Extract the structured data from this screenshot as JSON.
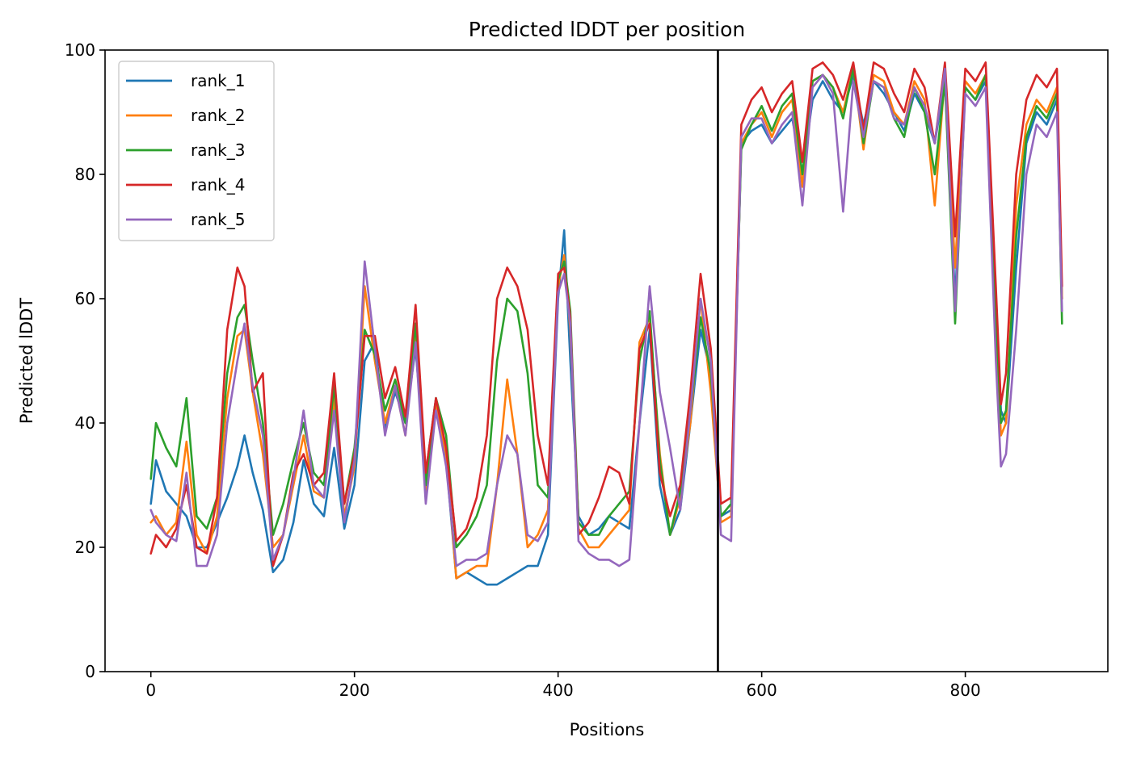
{
  "chart_data": {
    "type": "line",
    "title": "Predicted lDDT per position",
    "xlabel": "Positions",
    "ylabel": "Predicted lDDT",
    "xlim": [
      -45,
      940
    ],
    "ylim": [
      0,
      100
    ],
    "xticks": [
      0,
      200,
      400,
      600,
      800
    ],
    "yticks": [
      0,
      20,
      40,
      60,
      80,
      100
    ],
    "grid": false,
    "legend_position": "top-left",
    "vline": {
      "x": 557,
      "color": "#000000"
    },
    "series": [
      {
        "name": "rank_1",
        "color": "#1f77b4",
        "x": [
          0,
          5,
          15,
          25,
          35,
          45,
          55,
          65,
          75,
          85,
          92,
          100,
          110,
          120,
          130,
          140,
          150,
          160,
          170,
          180,
          190,
          200,
          210,
          220,
          230,
          240,
          250,
          260,
          270,
          280,
          290,
          300,
          310,
          320,
          330,
          340,
          350,
          360,
          370,
          380,
          390,
          400,
          406,
          412,
          420,
          430,
          440,
          450,
          460,
          470,
          480,
          490,
          500,
          510,
          520,
          530,
          540,
          550,
          560,
          570,
          580,
          590,
          600,
          610,
          620,
          630,
          640,
          650,
          660,
          670,
          680,
          690,
          700,
          710,
          720,
          730,
          740,
          750,
          760,
          770,
          780,
          790,
          800,
          810,
          820,
          830,
          835,
          840,
          850,
          860,
          870,
          880,
          890,
          895
        ],
        "values": [
          27,
          34,
          29,
          27,
          25,
          20,
          20,
          24,
          28,
          33,
          38,
          32,
          26,
          16,
          18,
          24,
          34,
          27,
          25,
          36,
          23,
          30,
          50,
          53,
          39,
          45,
          40,
          52,
          32,
          44,
          34,
          15,
          16,
          15,
          14,
          14,
          15,
          16,
          17,
          17,
          22,
          60,
          71,
          50,
          25,
          22,
          23,
          25,
          24,
          23,
          40,
          55,
          30,
          22,
          26,
          40,
          55,
          48,
          25,
          26,
          85,
          87,
          88,
          85,
          87,
          89,
          80,
          92,
          95,
          92,
          90,
          96,
          88,
          95,
          93,
          90,
          87,
          93,
          90,
          85,
          95,
          60,
          94,
          92,
          95,
          60,
          42,
          40,
          65,
          85,
          90,
          88,
          92,
          60
        ]
      },
      {
        "name": "rank_2",
        "color": "#ff7f0e",
        "x": [
          0,
          5,
          15,
          25,
          35,
          45,
          55,
          65,
          75,
          85,
          92,
          100,
          110,
          120,
          130,
          140,
          150,
          160,
          170,
          180,
          190,
          200,
          210,
          220,
          230,
          240,
          250,
          260,
          270,
          280,
          290,
          300,
          310,
          320,
          330,
          340,
          350,
          360,
          370,
          380,
          390,
          400,
          406,
          412,
          420,
          430,
          440,
          450,
          460,
          470,
          480,
          490,
          500,
          510,
          520,
          530,
          540,
          550,
          560,
          570,
          580,
          590,
          600,
          610,
          620,
          630,
          640,
          650,
          660,
          670,
          680,
          690,
          700,
          710,
          720,
          730,
          740,
          750,
          760,
          770,
          780,
          790,
          800,
          810,
          820,
          830,
          835,
          840,
          850,
          860,
          870,
          880,
          890,
          895
        ],
        "values": [
          24,
          25,
          22,
          24,
          37,
          22,
          19,
          25,
          44,
          54,
          55,
          45,
          35,
          20,
          22,
          30,
          38,
          29,
          28,
          44,
          25,
          33,
          62,
          50,
          40,
          46,
          38,
          55,
          28,
          43,
          35,
          15,
          16,
          17,
          17,
          30,
          47,
          35,
          20,
          22,
          26,
          62,
          67,
          55,
          23,
          20,
          20,
          22,
          24,
          26,
          53,
          57,
          35,
          22,
          28,
          40,
          60,
          45,
          24,
          25,
          85,
          88,
          90,
          86,
          90,
          92,
          78,
          95,
          96,
          94,
          90,
          97,
          84,
          96,
          95,
          90,
          88,
          95,
          92,
          75,
          96,
          65,
          95,
          93,
          96,
          55,
          38,
          40,
          75,
          88,
          92,
          90,
          94,
          60
        ]
      },
      {
        "name": "rank_3",
        "color": "#2ca02c",
        "x": [
          0,
          5,
          15,
          25,
          35,
          45,
          55,
          65,
          75,
          85,
          92,
          100,
          110,
          120,
          130,
          140,
          150,
          160,
          170,
          180,
          190,
          200,
          210,
          220,
          230,
          240,
          250,
          260,
          270,
          280,
          290,
          300,
          310,
          320,
          330,
          340,
          350,
          360,
          370,
          380,
          390,
          400,
          406,
          412,
          420,
          430,
          440,
          450,
          460,
          470,
          480,
          490,
          500,
          510,
          520,
          530,
          540,
          550,
          560,
          570,
          580,
          590,
          600,
          610,
          620,
          630,
          640,
          650,
          660,
          670,
          680,
          690,
          700,
          710,
          720,
          730,
          740,
          750,
          760,
          770,
          780,
          790,
          800,
          810,
          820,
          830,
          835,
          840,
          850,
          860,
          870,
          880,
          890,
          895
        ],
        "values": [
          31,
          40,
          36,
          33,
          44,
          25,
          23,
          28,
          48,
          57,
          59,
          50,
          40,
          22,
          27,
          34,
          40,
          32,
          30,
          46,
          27,
          36,
          55,
          51,
          42,
          47,
          40,
          56,
          30,
          44,
          38,
          20,
          22,
          25,
          30,
          50,
          60,
          58,
          48,
          30,
          28,
          63,
          66,
          58,
          24,
          22,
          22,
          25,
          27,
          29,
          50,
          58,
          34,
          22,
          29,
          42,
          57,
          48,
          25,
          27,
          84,
          88,
          91,
          87,
          91,
          93,
          80,
          95,
          96,
          94,
          89,
          97,
          85,
          95,
          94,
          89,
          86,
          94,
          90,
          80,
          95,
          56,
          94,
          92,
          96,
          58,
          40,
          42,
          70,
          86,
          91,
          89,
          93,
          56
        ]
      },
      {
        "name": "rank_4",
        "color": "#d62728",
        "x": [
          0,
          5,
          15,
          25,
          35,
          45,
          55,
          65,
          75,
          85,
          92,
          100,
          110,
          120,
          130,
          140,
          150,
          160,
          170,
          180,
          190,
          200,
          210,
          220,
          230,
          240,
          250,
          260,
          270,
          280,
          290,
          300,
          310,
          320,
          330,
          340,
          350,
          360,
          370,
          380,
          390,
          400,
          406,
          412,
          420,
          430,
          440,
          450,
          460,
          470,
          480,
          490,
          500,
          510,
          520,
          530,
          540,
          550,
          560,
          570,
          580,
          590,
          600,
          610,
          620,
          630,
          640,
          650,
          660,
          670,
          680,
          690,
          700,
          710,
          720,
          730,
          740,
          750,
          760,
          770,
          780,
          790,
          800,
          810,
          820,
          830,
          835,
          840,
          850,
          860,
          870,
          880,
          890,
          895
        ],
        "values": [
          19,
          22,
          20,
          23,
          30,
          20,
          19,
          28,
          55,
          65,
          62,
          45,
          48,
          17,
          22,
          32,
          35,
          30,
          32,
          48,
          27,
          35,
          54,
          54,
          44,
          49,
          41,
          59,
          32,
          44,
          36,
          21,
          23,
          28,
          38,
          60,
          65,
          62,
          55,
          38,
          30,
          64,
          65,
          57,
          22,
          24,
          28,
          33,
          32,
          27,
          52,
          56,
          32,
          25,
          30,
          45,
          64,
          52,
          27,
          28,
          88,
          92,
          94,
          90,
          93,
          95,
          82,
          97,
          98,
          96,
          92,
          98,
          87,
          98,
          97,
          93,
          90,
          97,
          94,
          85,
          98,
          70,
          97,
          95,
          98,
          62,
          43,
          48,
          80,
          92,
          96,
          94,
          97,
          62
        ]
      },
      {
        "name": "rank_5",
        "color": "#9467bd",
        "x": [
          0,
          5,
          15,
          25,
          35,
          45,
          55,
          65,
          75,
          85,
          92,
          100,
          110,
          120,
          130,
          140,
          150,
          160,
          170,
          180,
          190,
          200,
          210,
          220,
          230,
          240,
          250,
          260,
          270,
          280,
          290,
          300,
          310,
          320,
          330,
          340,
          350,
          360,
          370,
          380,
          390,
          400,
          406,
          412,
          420,
          430,
          440,
          450,
          460,
          470,
          480,
          490,
          500,
          510,
          520,
          530,
          540,
          550,
          560,
          570,
          580,
          590,
          600,
          610,
          620,
          630,
          640,
          650,
          660,
          670,
          680,
          690,
          700,
          710,
          720,
          730,
          740,
          750,
          760,
          770,
          780,
          790,
          800,
          810,
          820,
          830,
          835,
          840,
          850,
          860,
          870,
          880,
          890,
          895
        ],
        "values": [
          26,
          24,
          22,
          21,
          32,
          17,
          17,
          22,
          40,
          50,
          56,
          46,
          38,
          18,
          22,
          31,
          42,
          30,
          28,
          42,
          24,
          34,
          66,
          52,
          38,
          46,
          38,
          53,
          27,
          42,
          33,
          17,
          18,
          18,
          19,
          30,
          38,
          35,
          22,
          21,
          24,
          61,
          64,
          56,
          21,
          19,
          18,
          18,
          17,
          18,
          40,
          62,
          45,
          36,
          26,
          42,
          60,
          50,
          22,
          21,
          86,
          89,
          89,
          85,
          88,
          90,
          75,
          94,
          96,
          93,
          74,
          95,
          86,
          95,
          94,
          89,
          88,
          94,
          91,
          85,
          97,
          58,
          93,
          91,
          94,
          50,
          33,
          35,
          55,
          80,
          88,
          86,
          90,
          58
        ]
      }
    ]
  }
}
